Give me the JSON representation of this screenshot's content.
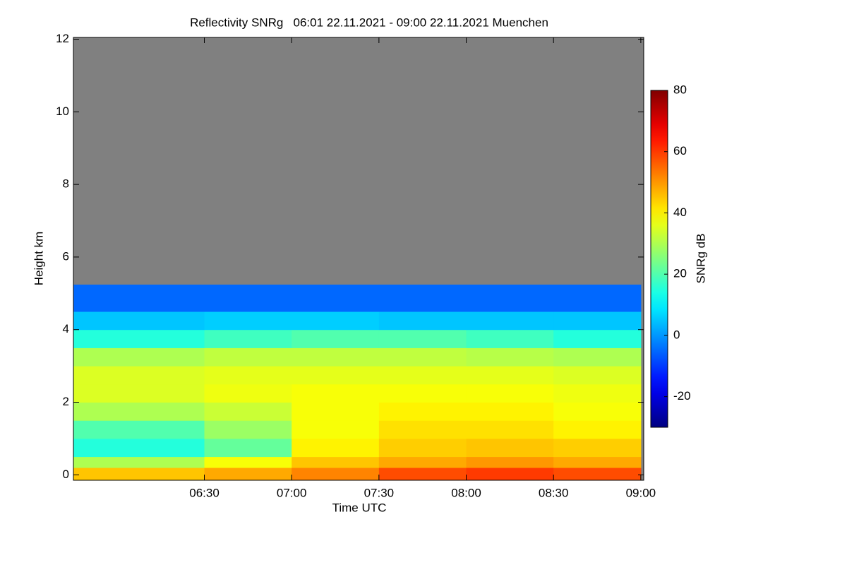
{
  "chart_data": {
    "type": "heatmap",
    "title": "Reflectivity SNRg   06:01 22.11.2021 - 09:00 22.11.2021 Muenchen",
    "xlabel": "Time UTC",
    "ylabel": "Height km",
    "colorbar_label": "SNRg dB",
    "xlim": [
      345,
      541
    ],
    "ylim": [
      -0.15,
      12.05
    ],
    "xticks": [
      {
        "value": 390,
        "label": "06:30"
      },
      {
        "value": 420,
        "label": "07:00"
      },
      {
        "value": 450,
        "label": "07:30"
      },
      {
        "value": 480,
        "label": "08:00"
      },
      {
        "value": 510,
        "label": "08:30"
      },
      {
        "value": 540,
        "label": "09:00"
      }
    ],
    "yticks": [
      0,
      2,
      4,
      6,
      8,
      10,
      12
    ],
    "x_bins": [
      345,
      390,
      420,
      450,
      480,
      510,
      540
    ],
    "y_bins": [
      0,
      0.2,
      0.5,
      1,
      1.5,
      2,
      2.5,
      3,
      3.5,
      4,
      4.5,
      5.25,
      12
    ],
    "z": [
      [
        45,
        48,
        52,
        58,
        60,
        58
      ],
      [
        30,
        38,
        45,
        48,
        50,
        48
      ],
      [
        15,
        22,
        40,
        44,
        45,
        44
      ],
      [
        20,
        28,
        38,
        42,
        42,
        40
      ],
      [
        30,
        33,
        38,
        40,
        40,
        38
      ],
      [
        35,
        37,
        38,
        38,
        38,
        37
      ],
      [
        35,
        36,
        36,
        36,
        36,
        35
      ],
      [
        30,
        32,
        32,
        32,
        31,
        30
      ],
      [
        15,
        18,
        20,
        20,
        18,
        15
      ],
      [
        5,
        6,
        6,
        5,
        5,
        5
      ],
      [
        -5,
        -5,
        -5,
        -5,
        -5,
        -5
      ],
      [
        null,
        null,
        null,
        null,
        null,
        null
      ]
    ],
    "zlim": [
      -30,
      80
    ],
    "zticks": [
      -20,
      0,
      20,
      40,
      60,
      80
    ],
    "colormap": "jet",
    "null_color": "#808080"
  }
}
